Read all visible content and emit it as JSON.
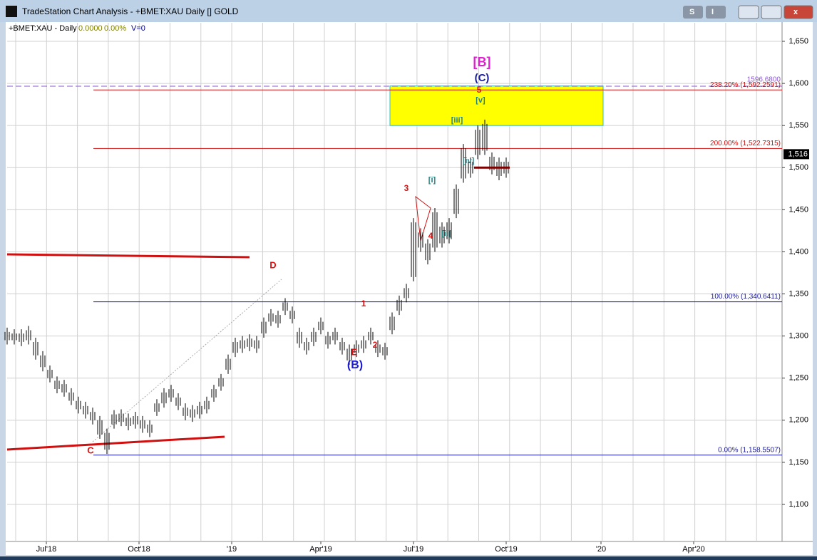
{
  "window": {
    "title": "TradeStation Chart Analysis - +BMET:XAU Daily [] GOLD",
    "buttons": [
      "S",
      "I"
    ]
  },
  "chart_data": {
    "type": "ohlc",
    "symbol": "+BMET:XAU - Daily",
    "change": "0.0000",
    "change_pct": "0.00%",
    "volume": "V=0",
    "x": [
      0,
      1,
      2,
      3,
      4,
      5,
      6,
      7,
      8,
      9,
      10,
      11,
      12,
      13,
      14,
      15,
      16,
      17,
      18,
      19,
      20,
      21,
      22,
      23,
      24,
      25,
      26,
      27,
      28,
      29,
      30,
      31,
      32,
      33,
      34,
      35,
      36,
      37,
      38,
      39,
      40,
      41,
      42,
      43,
      44,
      45,
      46,
      47,
      48,
      49,
      50,
      51,
      52,
      53,
      54,
      55,
      56,
      57,
      58,
      59,
      60,
      61,
      62,
      63,
      64,
      65,
      66,
      67,
      68,
      69,
      70
    ],
    "high": [
      1310,
      1308,
      1308,
      1312,
      1298,
      1282,
      1265,
      1252,
      1248,
      1238,
      1228,
      1222,
      1215,
      1205,
      1190,
      1212,
      1213,
      1208,
      1210,
      1205,
      1200,
      1225,
      1238,
      1242,
      1232,
      1220,
      1218,
      1222,
      1228,
      1242,
      1255,
      1278,
      1298,
      1300,
      1302,
      1300,
      1322,
      1332,
      1330,
      1345,
      1335,
      1310,
      1298,
      1310,
      1322,
      1305,
      1310,
      1298,
      1290,
      1295,
      1300,
      1310,
      1295,
      1292,
      1328,
      1348,
      1362,
      1440,
      1428,
      1415,
      1452,
      1435,
      1440,
      1480,
      1528,
      1512,
      1550,
      1557,
      1518,
      1512,
      1512
    ],
    "low": [
      1290,
      1290,
      1288,
      1290,
      1272,
      1258,
      1245,
      1232,
      1228,
      1218,
      1208,
      1202,
      1195,
      1178,
      1160,
      1190,
      1193,
      1188,
      1190,
      1185,
      1180,
      1205,
      1215,
      1222,
      1212,
      1200,
      1198,
      1202,
      1208,
      1222,
      1235,
      1255,
      1275,
      1280,
      1282,
      1280,
      1298,
      1312,
      1310,
      1325,
      1315,
      1286,
      1278,
      1288,
      1302,
      1285,
      1290,
      1278,
      1266,
      1275,
      1280,
      1290,
      1275,
      1272,
      1302,
      1325,
      1340,
      1365,
      1400,
      1385,
      1400,
      1405,
      1410,
      1440,
      1482,
      1488,
      1510,
      1515,
      1492,
      1485,
      1488
    ],
    "color": "#000000",
    "xlim": [
      0,
      108.7
    ],
    "xticks": [
      {
        "value": 5.5,
        "label": "Jul'18"
      },
      {
        "value": 18.5,
        "label": "Oct'18"
      },
      {
        "value": 31.5,
        "label": "'19"
      },
      {
        "value": 44,
        "label": "Apr'19"
      },
      {
        "value": 57,
        "label": "Jul'19"
      },
      {
        "value": 70,
        "label": "Oct'19"
      },
      {
        "value": 83.3,
        "label": "'20"
      },
      {
        "value": 96.3,
        "label": "Apr'20"
      }
    ],
    "ylim": [
      1056,
      1672
    ],
    "yticks": [
      {
        "value": 1100,
        "label": "1,100"
      },
      {
        "value": 1150,
        "label": "1,150"
      },
      {
        "value": 1200,
        "label": "1,200"
      },
      {
        "value": 1250,
        "label": "1,250"
      },
      {
        "value": 1300,
        "label": "1,300"
      },
      {
        "value": 1350,
        "label": "1,350"
      },
      {
        "value": 1400,
        "label": "1,400"
      },
      {
        "value": 1450,
        "label": "1,450"
      },
      {
        "value": 1500,
        "label": "1,500"
      },
      {
        "value": 1550,
        "label": "1,550"
      },
      {
        "value": 1600,
        "label": "1,600"
      },
      {
        "value": 1650,
        "label": "1,650"
      }
    ],
    "grid": true,
    "last_price": {
      "value": 1516,
      "label": "1,516"
    },
    "levels": [
      {
        "value": 1596.68,
        "label": "1596.6800",
        "color": "#8a5ad0",
        "dashed": true
      },
      {
        "value": 1592.2591,
        "label": "238.20% (1,592.2591)",
        "color": "#d01010",
        "dashed": false
      },
      {
        "value": 1522.7315,
        "label": "200.00% (1,522.7315)",
        "color": "#d01010",
        "dashed": false
      },
      {
        "value": 1340.6411,
        "label": "100.00% (1,340.6411)",
        "color": "#1a1a9a",
        "dashed": false
      },
      {
        "value": 1158.5507,
        "label": "0.00% (1,158.5507)",
        "color": "#1a1a9a",
        "dashed": false
      }
    ],
    "zone": {
      "low": 1550,
      "high": 1597,
      "x": [
        53.7,
        83.6
      ],
      "color": "#ffff00"
    },
    "annotations": [
      {
        "text": "[B]",
        "color": "#e020d0"
      },
      {
        "text": "(C)",
        "color": "#1a1aa0"
      },
      {
        "text": "5",
        "color": "#e01010"
      },
      {
        "text": "[v]",
        "color": "#208080"
      },
      {
        "text": "[iii]",
        "color": "#208080"
      },
      {
        "text": "[iv]",
        "color": "#208080"
      },
      {
        "text": "[i]",
        "color": "#208080"
      },
      {
        "text": "[ii]",
        "color": "#208080"
      },
      {
        "text": "3",
        "color": "#e01010"
      },
      {
        "text": "4",
        "color": "#e01010"
      },
      {
        "text": "1",
        "color": "#e01010"
      },
      {
        "text": "2",
        "color": "#e01010"
      },
      {
        "text": "E",
        "color": "#e01010"
      },
      {
        "text": "(B)",
        "color": "#1a1ad0"
      },
      {
        "text": "D",
        "color": "#e01010"
      },
      {
        "text": "C",
        "color": "#e01010"
      }
    ]
  }
}
